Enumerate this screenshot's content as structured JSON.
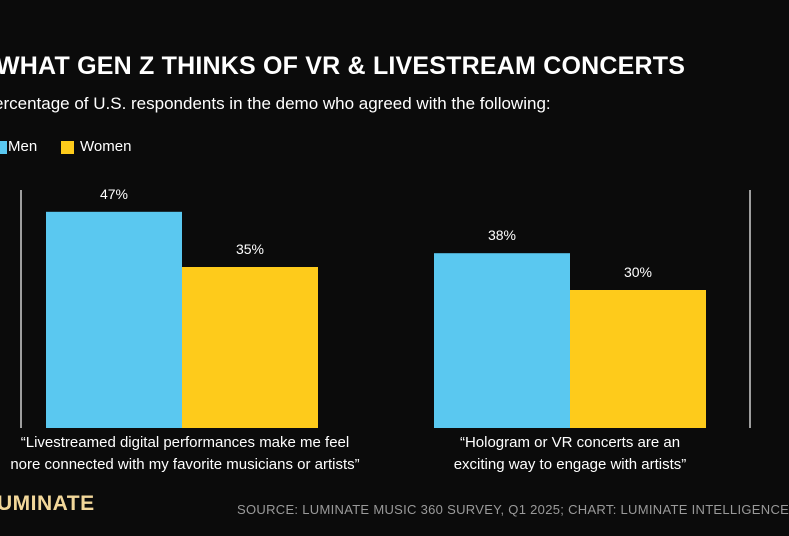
{
  "header": {
    "title": "WHAT GEN Z THINKS OF VR & LIVESTREAM CONCERTS",
    "subtitle": "ercentage of U.S. respondents in the demo who agreed with the following:"
  },
  "legend": {
    "men": "Men",
    "women": "Women"
  },
  "colors": {
    "men": "#5ac8f0",
    "women": "#fecb1b",
    "axis": "#d0d0d0"
  },
  "chart_data": {
    "type": "bar",
    "title": "WHAT GEN Z THINKS OF VR & LIVESTREAM CONCERTS",
    "subtitle": "ercentage of U.S. respondents in the demo who agreed with the following:",
    "categories": [
      [
        "“Livestreamed digital performances make me feel",
        "nore connected with my favorite musicians or artists”"
      ],
      [
        "“Hologram or VR concerts are an",
        "exciting way to engage with artists”"
      ]
    ],
    "series": [
      {
        "name": "Men",
        "values": [
          47,
          38
        ],
        "labels": [
          "47%",
          "38%"
        ]
      },
      {
        "name": "Women",
        "values": [
          35,
          30
        ],
        "labels": [
          "35%",
          "30%"
        ]
      }
    ],
    "ylim": [
      0,
      50
    ],
    "unit": "%",
    "grid": false,
    "legend_position": "top-left"
  },
  "footer": {
    "logo": "UMINATE",
    "source": "SOURCE: LUMINATE MUSIC 360 SURVEY, Q1 2025; CHART: LUMINATE INTELLIGENCE"
  }
}
